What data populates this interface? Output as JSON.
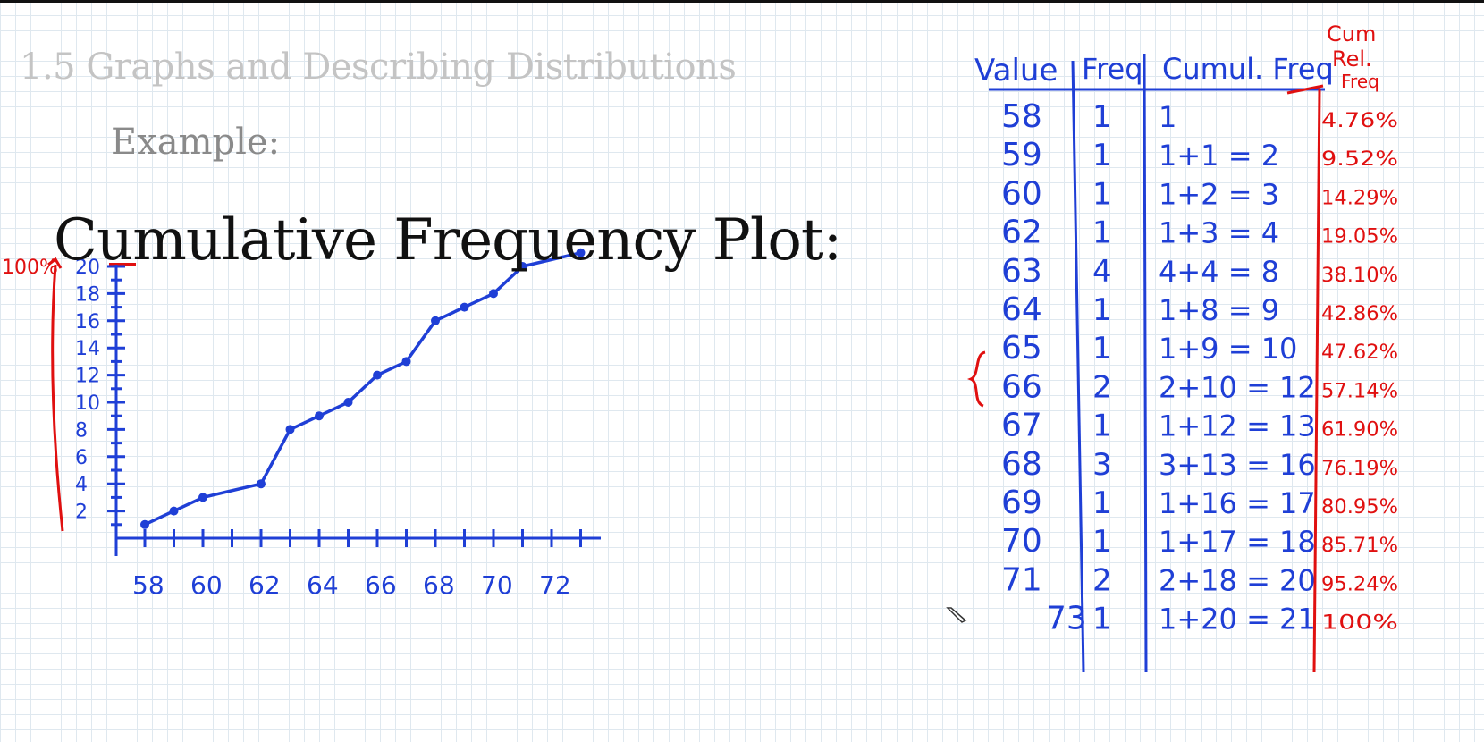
{
  "slide": {
    "heading": "1.5 Graphs and Describing Distributions",
    "example_label": "Example:",
    "plot_title": "Cumulative Frequency Plot:"
  },
  "annotations": {
    "percent_100": "100%"
  },
  "chart_data": {
    "type": "line",
    "title": "",
    "xlabel": "",
    "ylabel": "",
    "x_ticks": [
      "58",
      "60",
      "62",
      "64",
      "66",
      "68",
      "70",
      "72"
    ],
    "y_ticks": [
      "2",
      "4",
      "6",
      "8",
      "10",
      "12",
      "14",
      "16",
      "18",
      "20"
    ],
    "xlim": [
      58,
      73
    ],
    "ylim": [
      0,
      21
    ],
    "series": [
      {
        "x": [
          58,
          59,
          60,
          62,
          63,
          64,
          65,
          66,
          67,
          68,
          69,
          70,
          71,
          73
        ],
        "y": [
          1,
          2,
          3,
          4,
          8,
          9,
          10,
          12,
          13,
          16,
          17,
          18,
          20,
          21
        ]
      }
    ],
    "grid": false
  },
  "table": {
    "headers": {
      "value": "Value",
      "freq": "Freq",
      "cumul": "Cumul. Freq",
      "cum_rel_line1": "Cum",
      "cum_rel_line2": "Rel.",
      "cum_rel_line3": "Freq"
    },
    "rows": [
      {
        "value": "58",
        "freq": "1",
        "cumul": "1",
        "rel": "4.76%"
      },
      {
        "value": "59",
        "freq": "1",
        "cumul": "1+1 = 2",
        "rel": "9.52%"
      },
      {
        "value": "60",
        "freq": "1",
        "cumul": "1+2 = 3",
        "rel": "14.29%"
      },
      {
        "value": "62",
        "freq": "1",
        "cumul": "1+3 = 4",
        "rel": "19.05%"
      },
      {
        "value": "63",
        "freq": "4",
        "cumul": "4+4 = 8",
        "rel": "38.10%"
      },
      {
        "value": "64",
        "freq": "1",
        "cumul": "1+8 = 9",
        "rel": "42.86%"
      },
      {
        "value": "65",
        "freq": "1",
        "cumul": "1+9 = 10",
        "rel": "47.62%"
      },
      {
        "value": "66",
        "freq": "2",
        "cumul": "2+10 = 12",
        "rel": "57.14%"
      },
      {
        "value": "67",
        "freq": "1",
        "cumul": "1+12 = 13",
        "rel": "61.90%"
      },
      {
        "value": "68",
        "freq": "3",
        "cumul": "3+13 = 16",
        "rel": "76.19%"
      },
      {
        "value": "69",
        "freq": "1",
        "cumul": "1+16 = 17",
        "rel": "80.95%"
      },
      {
        "value": "70",
        "freq": "1",
        "cumul": "1+17 = 18",
        "rel": "85.71%"
      },
      {
        "value": "71",
        "freq": "2",
        "cumul": "2+18 = 20",
        "rel": "95.24%"
      },
      {
        "value": "73",
        "freq": "1",
        "cumul": "1+20 = 21",
        "rel": "100%"
      }
    ]
  },
  "colors": {
    "ink_blue": "#1f3fd6",
    "ink_red": "#e01010",
    "heading_gray": "#c4c4c4"
  },
  "icons": {
    "cursor": "pen-icon"
  }
}
